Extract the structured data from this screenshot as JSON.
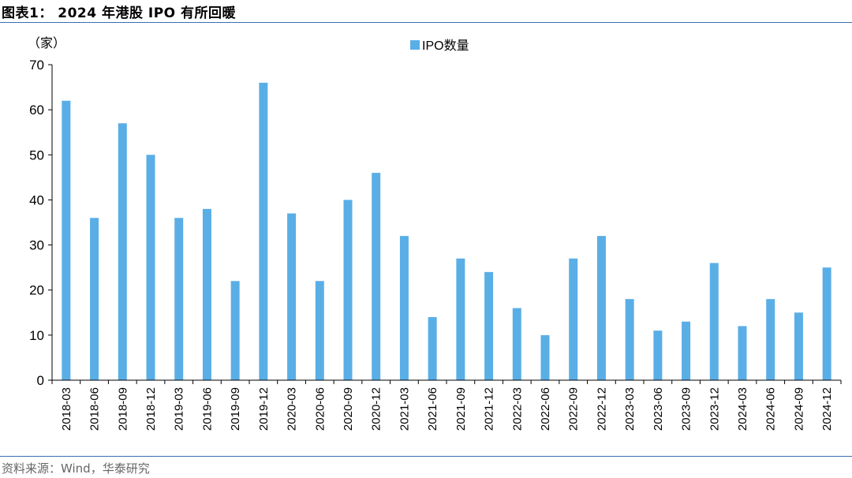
{
  "figure": {
    "title": "图表1：  2024 年港股 IPO 有所回暖",
    "source": "资料来源：Wind，华泰研究"
  },
  "colors": {
    "bar": "#5aaee6",
    "axis": "#000000",
    "rule": "#3a6fb0"
  },
  "chart_data": {
    "type": "bar",
    "title": "",
    "ylabel": "（家）",
    "xlabel": "",
    "ylim": [
      0,
      70
    ],
    "yticks": [
      0,
      10,
      20,
      30,
      40,
      50,
      60,
      70
    ],
    "grid": false,
    "legend": {
      "position": "top-center",
      "entries": [
        "IPO数量"
      ]
    },
    "categories": [
      "2018-03",
      "2018-06",
      "2018-09",
      "2018-12",
      "2019-03",
      "2019-06",
      "2019-09",
      "2019-12",
      "2020-03",
      "2020-06",
      "2020-09",
      "2020-12",
      "2021-03",
      "2021-06",
      "2021-09",
      "2021-12",
      "2022-03",
      "2022-06",
      "2022-09",
      "2022-12",
      "2023-03",
      "2023-06",
      "2023-09",
      "2023-12",
      "2024-03",
      "2024-06",
      "2024-09",
      "2024-12"
    ],
    "series": [
      {
        "name": "IPO数量",
        "values": [
          62,
          36,
          57,
          50,
          36,
          38,
          22,
          66,
          37,
          22,
          40,
          46,
          32,
          14,
          27,
          24,
          16,
          10,
          27,
          32,
          18,
          11,
          13,
          26,
          12,
          18,
          15,
          25
        ]
      }
    ]
  }
}
